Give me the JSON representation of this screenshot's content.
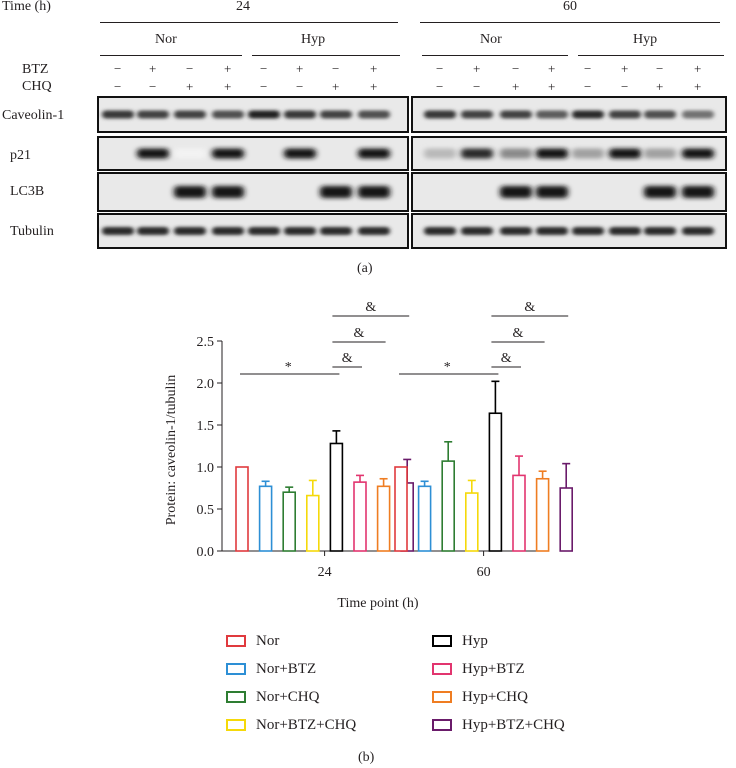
{
  "figure_a": {
    "time_label": "Time (h)",
    "time_groups": [
      "24",
      "60"
    ],
    "conditions": [
      "Nor",
      "Hyp",
      "Nor",
      "Hyp"
    ],
    "row_labels": [
      "BTZ",
      "CHQ"
    ],
    "btz_signs": [
      "−",
      "+",
      "−",
      "+",
      "−",
      "+",
      "−",
      "+",
      "−",
      "+",
      "−",
      "+",
      "−",
      "+",
      "−",
      "+"
    ],
    "chq_signs": [
      "−",
      "−",
      "+",
      "+",
      "−",
      "−",
      "+",
      "+",
      "−",
      "−",
      "+",
      "+",
      "−",
      "−",
      "+",
      "+"
    ],
    "blot_labels": [
      "Caveolin-1",
      "p21",
      "LC3B",
      "Tubulin"
    ],
    "blot_intensity": {
      "Caveolin-1": [
        0.85,
        0.8,
        0.8,
        0.75,
        0.95,
        0.85,
        0.8,
        0.75,
        0.85,
        0.8,
        0.8,
        0.7,
        0.9,
        0.8,
        0.75,
        0.6
      ],
      "p21": [
        0.0,
        1.0,
        0.05,
        1.0,
        0.0,
        1.0,
        0.0,
        1.0,
        0.3,
        0.9,
        0.5,
        1.0,
        0.4,
        1.0,
        0.4,
        1.0
      ],
      "LC3B": [
        0.0,
        0.0,
        1.0,
        1.0,
        0.0,
        0.0,
        1.0,
        1.0,
        0.0,
        0.0,
        1.0,
        1.0,
        0.0,
        0.0,
        1.0,
        1.0
      ],
      "Tubulin": [
        0.9,
        0.9,
        0.9,
        0.9,
        0.9,
        0.9,
        0.9,
        0.9,
        0.9,
        0.9,
        0.9,
        0.9,
        0.9,
        0.9,
        0.9,
        0.9
      ]
    },
    "caption": "(a)"
  },
  "chart_data": {
    "type": "bar",
    "xlabel": "Time point (h)",
    "ylabel": "Protein: caveolin-1/tubulin",
    "categories": [
      "24",
      "60"
    ],
    "ylim": [
      0,
      2.5
    ],
    "yticks": [
      "0.0",
      "0.5",
      "1.0",
      "1.5",
      "2.0",
      "2.5"
    ],
    "series": [
      {
        "name": "Nor",
        "color": "#e03a3e",
        "values": [
          1.0,
          1.0
        ],
        "errors": [
          0,
          0
        ]
      },
      {
        "name": "Nor+BTZ",
        "color": "#2d8fd5",
        "values": [
          0.77,
          0.77
        ],
        "errors": [
          0.06,
          0.06
        ]
      },
      {
        "name": "Nor+CHQ",
        "color": "#2e7d32",
        "values": [
          0.7,
          1.07
        ],
        "errors": [
          0.06,
          0.23
        ]
      },
      {
        "name": "Nor+BTZ+CHQ",
        "color": "#f5d90a",
        "values": [
          0.66,
          0.69
        ],
        "errors": [
          0.18,
          0.15
        ]
      },
      {
        "name": "Hyp",
        "color": "#000000",
        "values": [
          1.28,
          1.64
        ],
        "errors": [
          0.15,
          0.38
        ]
      },
      {
        "name": "Hyp+BTZ",
        "color": "#e2356f",
        "values": [
          0.82,
          0.9
        ],
        "errors": [
          0.08,
          0.23
        ]
      },
      {
        "name": "Hyp+CHQ",
        "color": "#ef7d22",
        "values": [
          0.77,
          0.86
        ],
        "errors": [
          0.09,
          0.09
        ]
      },
      {
        "name": "Hyp+BTZ+CHQ",
        "color": "#6a1b6a",
        "values": [
          0.81,
          0.75
        ],
        "errors": [
          0.28,
          0.29
        ]
      }
    ],
    "annotations": {
      "star": "*",
      "amp": "&"
    },
    "legend_placement": "bottom"
  },
  "figure_b": {
    "caption": "(b)"
  }
}
